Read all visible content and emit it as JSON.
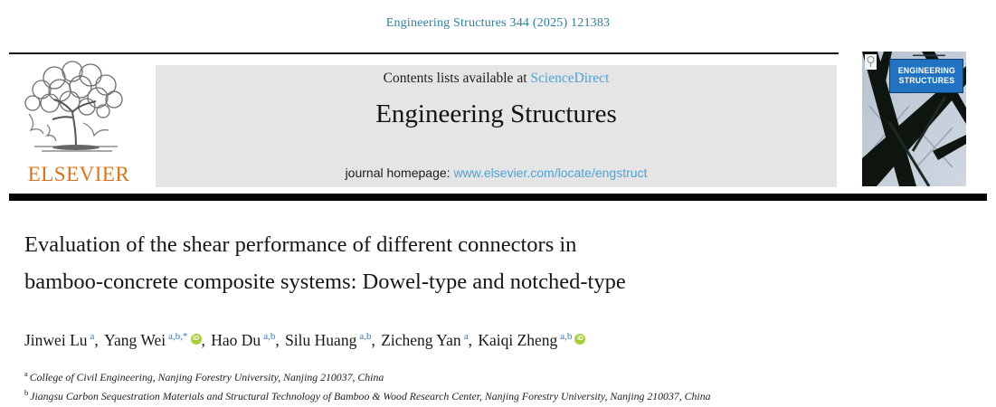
{
  "citation": "Engineering Structures 344 (2025) 121383",
  "header": {
    "contents_prefix": "Contents lists available at ",
    "sciencedirect_link": "ScienceDirect",
    "journal_title": "Engineering Structures",
    "homepage_prefix": "journal homepage: ",
    "homepage_link": "www.elsevier.com/locate/engstruct",
    "elsevier_logo_text": "ELSEVIER"
  },
  "cover": {
    "title_line1": "ENGINEERING",
    "title_line2": "STRUCTURES"
  },
  "article": {
    "title_line1": "Evaluation of the shear performance of different connectors in",
    "title_line2": "bamboo-concrete composite systems: Dowel-type and notched-type",
    "authors": [
      {
        "name": "Jinwei Lu",
        "sup": "a",
        "orcid": false,
        "sep": ", "
      },
      {
        "name": "Yang Wei",
        "sup": "a,b,*",
        "orcid": true,
        "sep": ", "
      },
      {
        "name": "Hao Du",
        "sup": "a,b",
        "orcid": false,
        "sep": ", "
      },
      {
        "name": "Silu Huang",
        "sup": "a,b",
        "orcid": false,
        "sep": ", "
      },
      {
        "name": "Zicheng Yan",
        "sup": "a",
        "orcid": false,
        "sep": ", "
      },
      {
        "name": "Kaiqi Zheng",
        "sup": "a,b",
        "orcid": true,
        "sep": ""
      }
    ],
    "affiliations": [
      {
        "sup": "a",
        "text": "College of Civil Engineering, Nanjing Forestry University, Nanjing 210037, China"
      },
      {
        "sup": "b",
        "text": "Jiangsu Carbon Sequestration Materials and Structural Technology of Bamboo & Wood Research Center, Nanjing Forestry University, Nanjing 210037, China"
      }
    ]
  },
  "colors": {
    "citation_teal": "#2e7f9f",
    "link_blue": "#4ba3d9",
    "elsevier_orange": "#d9731a",
    "orcid_green": "#a6ce39",
    "author_sup_blue": "#3579b8",
    "banner_gray": "#e5e5e5",
    "cover_blue": "#2173c2",
    "rule_black": "#000000"
  }
}
